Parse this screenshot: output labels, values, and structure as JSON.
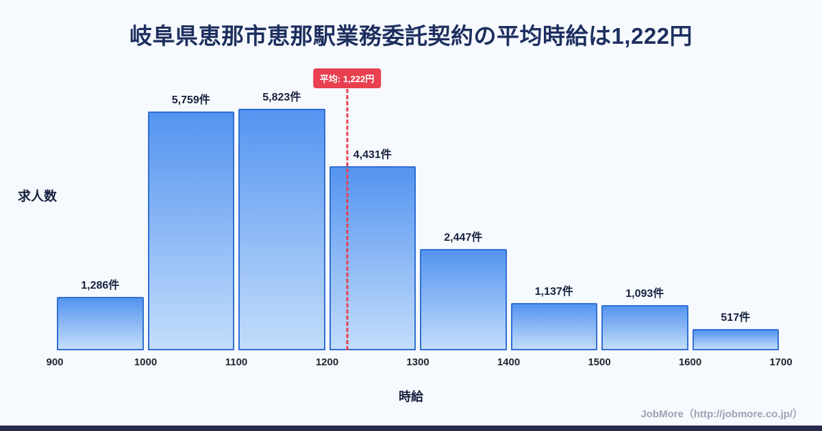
{
  "title": "岐阜県恵那市恵那駅業務委託契約の平均時給は1,222円",
  "chart_data": {
    "type": "bar",
    "subtype": "histogram",
    "title": "岐阜県恵那市恵那駅業務委託契約の平均時給は1,222円",
    "xlabel": "時給",
    "ylabel": "求人数",
    "bin_edges": [
      900,
      1000,
      1100,
      1200,
      1300,
      1400,
      1500,
      1600,
      1700
    ],
    "x_tick_labels": [
      "900",
      "1000",
      "1100",
      "1200",
      "1300",
      "1400",
      "1500",
      "1600",
      "1700"
    ],
    "values": [
      1286,
      5759,
      5823,
      4431,
      2447,
      1137,
      1093,
      517
    ],
    "value_labels": [
      "1,286件",
      "5,759件",
      "5,823件",
      "4,431件",
      "2,447件",
      "1,137件",
      "1,093件",
      "517件"
    ],
    "ylim": [
      0,
      6300
    ],
    "grid": false,
    "legend": "none",
    "average_marker": {
      "value": 1222,
      "label": "平均: 1,222円"
    },
    "colors": {
      "bar_gradient_top": "#5494f0",
      "bar_gradient_bottom": "#c3ddfb",
      "bar_border": "#2f6fd4",
      "average_line": "#e8404f",
      "badge_background": "#e8404f",
      "badge_text": "#ffffff",
      "title_text": "#1d2f5f",
      "accent_strip": "#262b4b",
      "background": "#f6f9fd"
    }
  },
  "footer": {
    "credit": "JobMore（http://jobmore.co.jp/）"
  }
}
